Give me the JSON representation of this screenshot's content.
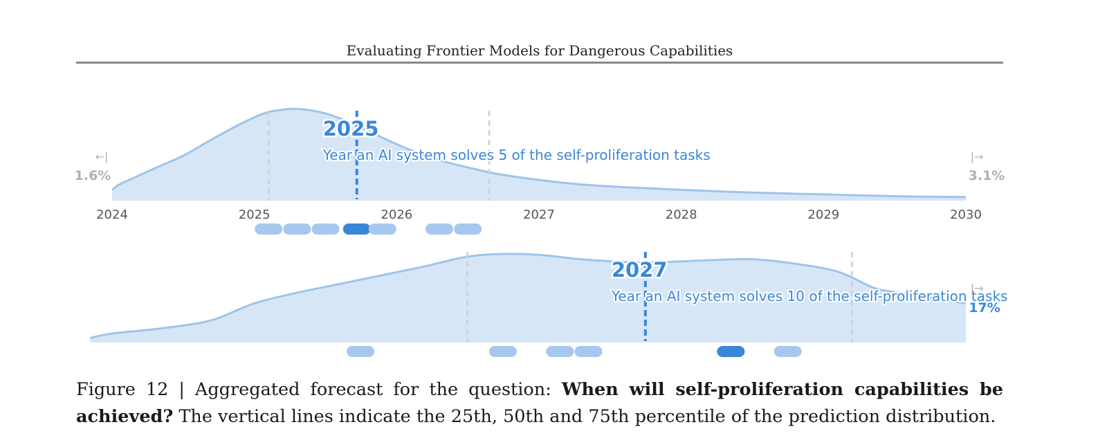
{
  "header": {
    "title": "Evaluating Frontier Models for Dangerous Capabilities"
  },
  "caption": {
    "prefix": "Figure 12 | Aggregated forecast for the question: ",
    "question": "When will self-proliferation capabilities be achieved?",
    "suffix": " The vertical lines indicate the 25th, 50th and 75th percentile of the prediction distribution."
  },
  "colors": {
    "fill": "#d6e6f7",
    "stroke": "#9ec4ea",
    "accent": "#3a87d8",
    "dot": "#a6c8ee",
    "muted": "#b0b0b0",
    "axis_text": "#555555"
  },
  "chart_data": [
    {
      "type": "area",
      "x_axis": {
        "ticks": [
          2024,
          2025,
          2026,
          2027,
          2028,
          2029,
          2030
        ],
        "range": [
          2024,
          2030
        ]
      },
      "x": [
        2024.0,
        2024.05,
        2024.12,
        2024.3,
        2024.5,
        2024.7,
        2024.9,
        2025.05,
        2025.15,
        2025.3,
        2025.5,
        2025.7,
        2025.9,
        2026.1,
        2026.3,
        2026.5,
        2026.7,
        2027.0,
        2027.3,
        2027.6,
        2028.0,
        2028.5,
        2029.0,
        2029.5,
        2030.0
      ],
      "density": [
        0.12,
        0.18,
        0.23,
        0.36,
        0.5,
        0.68,
        0.85,
        0.96,
        1.0,
        1.02,
        0.97,
        0.85,
        0.7,
        0.56,
        0.45,
        0.37,
        0.3,
        0.23,
        0.18,
        0.15,
        0.12,
        0.09,
        0.07,
        0.05,
        0.04
      ],
      "percentiles": {
        "p25": 2025.1,
        "p50": 2025.72,
        "p75": 2026.65
      },
      "median_label": "2025",
      "annotation": "Year an AI system solves 5 of the self-proliferation tasks",
      "left_tail": {
        "arrow": "←|",
        "value": "1.6%"
      },
      "right_tail": {
        "arrow": "|→",
        "value": "3.1%"
      },
      "forecaster_points": [
        2025.1,
        2025.3,
        2025.5,
        2025.72,
        2025.9,
        2026.3,
        2026.5
      ],
      "highlighted_point_index": 3
    },
    {
      "type": "area",
      "x_axis": {
        "ticks": [],
        "range": [
          2023.85,
          2030.0
        ]
      },
      "x": [
        2023.85,
        2024.0,
        2024.35,
        2024.7,
        2025.0,
        2025.3,
        2025.6,
        2025.9,
        2026.2,
        2026.5,
        2026.75,
        2027.0,
        2027.3,
        2027.6,
        2027.9,
        2028.2,
        2028.5,
        2028.8,
        2029.1,
        2029.35,
        2029.5,
        2029.7,
        2030.0
      ],
      "density": [
        0.05,
        0.1,
        0.16,
        0.25,
        0.44,
        0.56,
        0.66,
        0.76,
        0.86,
        0.97,
        1.0,
        0.99,
        0.94,
        0.91,
        0.91,
        0.93,
        0.94,
        0.89,
        0.8,
        0.62,
        0.57,
        0.52,
        0.44
      ],
      "percentiles": {
        "p25": 2026.5,
        "p50": 2027.75,
        "p75": 2029.2
      },
      "median_label": "2027",
      "annotation": "Year an AI system solves 10 of the self-proliferation tasks",
      "right_tail": {
        "arrow": "|→",
        "value": "17%"
      },
      "forecaster_points": [
        2025.75,
        2026.75,
        2027.15,
        2027.35,
        2028.35,
        2028.75
      ],
      "highlighted_point_index": 4
    }
  ]
}
